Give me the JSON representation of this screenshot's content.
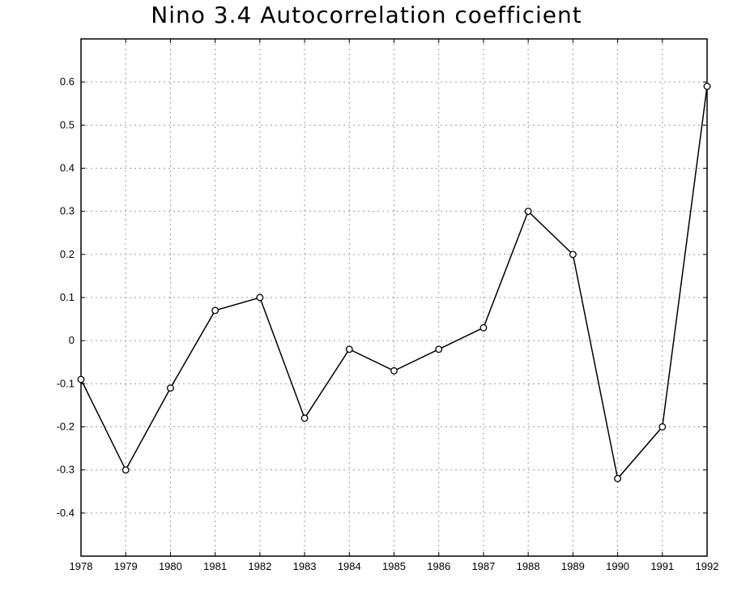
{
  "chart_data": {
    "type": "line",
    "title": "Nino 3.4 Autocorrelation coefficient",
    "xlabel": "",
    "ylabel": "",
    "x": [
      1978,
      1979,
      1980,
      1981,
      1982,
      1983,
      1984,
      1985,
      1986,
      1987,
      1988,
      1989,
      1990,
      1991,
      1992
    ],
    "series": [
      {
        "values": [
          -0.09,
          -0.3,
          -0.11,
          0.07,
          0.1,
          -0.18,
          -0.02,
          -0.07,
          -0.02,
          0.03,
          0.3,
          0.2,
          -0.32,
          -0.2,
          0.59
        ]
      }
    ],
    "xlim": [
      1978,
      1992
    ],
    "ylim": [
      -0.5,
      0.7
    ],
    "x_ticks": [
      "1978",
      "1979",
      "1980",
      "1981",
      "1982",
      "1983",
      "1984",
      "1985",
      "1986",
      "1987",
      "1988",
      "1989",
      "1990",
      "1991",
      "1992"
    ],
    "y_ticks": [
      "-0.4",
      "-0.3",
      "-0.2",
      "-0.1",
      "0",
      "0.1",
      "0.2",
      "0.3",
      "0.4",
      "0.5",
      "0.6"
    ],
    "y_tick_values": [
      -0.4,
      -0.3,
      -0.2,
      -0.1,
      0,
      0.1,
      0.2,
      0.3,
      0.4,
      0.5,
      0.6
    ],
    "grid": true,
    "grid_style": "dotted",
    "line_color": "#000000",
    "marker": "open-circle"
  }
}
